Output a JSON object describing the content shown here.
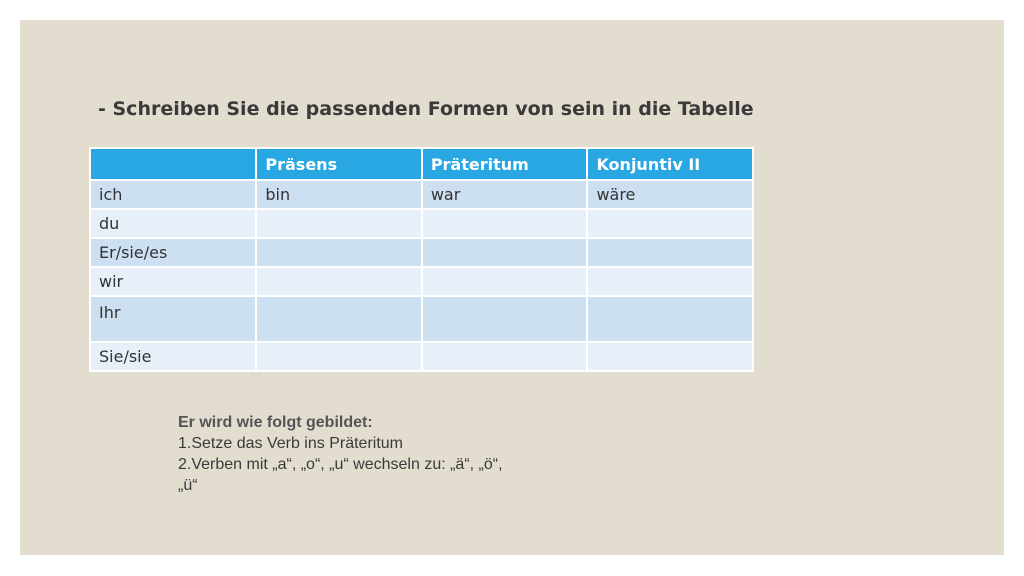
{
  "heading": "- Schreiben Sie die passenden Formen von sein in die Tabelle",
  "table": {
    "headers": [
      "",
      "Präsens",
      "Präteritum",
      "Konjuntiv II"
    ],
    "rows": [
      [
        "ich",
        "bin",
        "war",
        "wäre"
      ],
      [
        "du",
        "",
        "",
        ""
      ],
      [
        "Er/sie/es",
        "",
        "",
        ""
      ],
      [
        "wir",
        "",
        "",
        ""
      ],
      [
        "Ihr",
        "",
        "",
        ""
      ],
      [
        "Sie/sie",
        "",
        "",
        ""
      ]
    ]
  },
  "notes": {
    "title": "Er wird wie folgt gebildet:",
    "line1": "1.Setze das Verb ins Präteritum",
    "line2": "2.Verben mit „a“, „o“, „u“ wechseln zu: „ä“, „ö“,",
    "line3": "„ü“"
  },
  "colors": {
    "slide_background": "#e3ddd0",
    "header_fill": "#29a7e3",
    "row_fill_dark": "#cde0f1",
    "row_fill_light": "#e7f0f8"
  }
}
